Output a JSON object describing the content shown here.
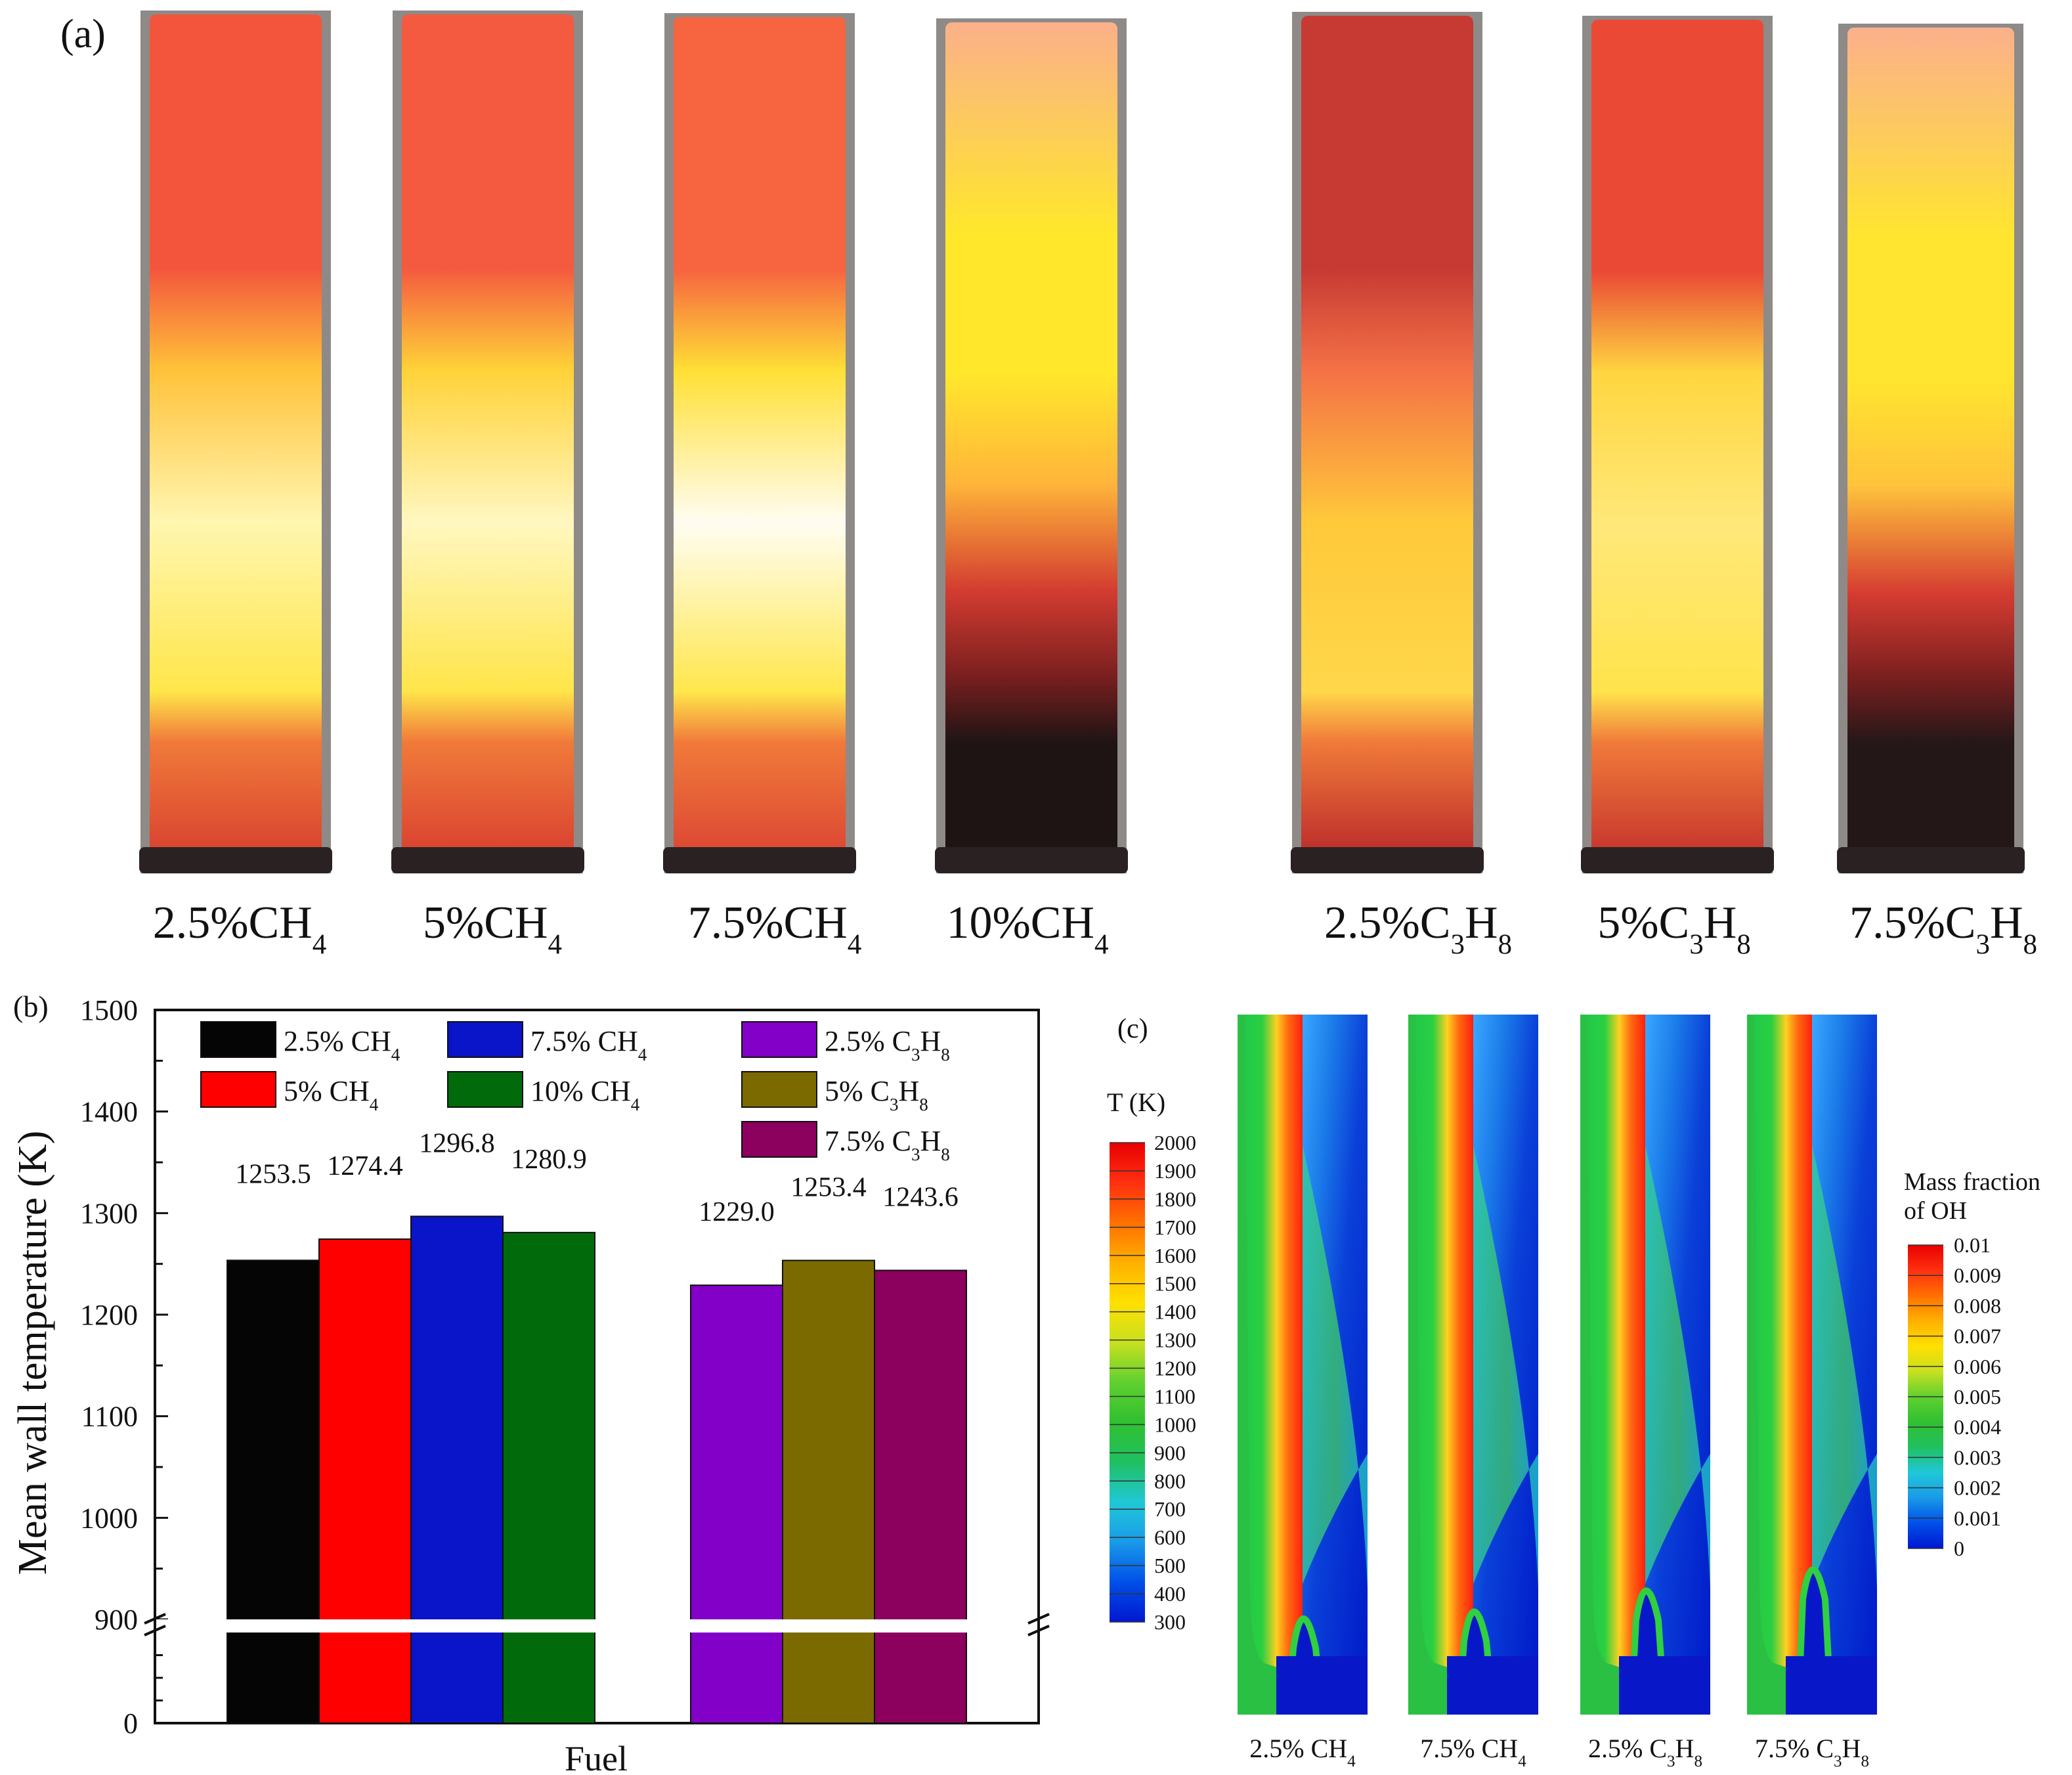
{
  "panel_a": {
    "label": "(a)",
    "tubes": [
      {
        "name": "2.5%CH4",
        "main": "2.5%CH",
        "sub": "4",
        "bottom": "#d73f2f",
        "lower": "#ffe64a",
        "middle": "#fff6b0",
        "upper": "#ffc23a",
        "top": "#f3553c",
        "dark": false
      },
      {
        "name": "5%CH4",
        "main": "5%CH",
        "sub": "4",
        "bottom": "#d83f30",
        "lower": "#ffe54a",
        "middle": "#fff7c0",
        "upper": "#ffd238",
        "top": "#f45a3f",
        "dark": false
      },
      {
        "name": "7.5%CH4",
        "main": "7.5%CH",
        "sub": "4",
        "bottom": "#db4433",
        "lower": "#ffe74c",
        "middle": "#fffdf2",
        "upper": "#ffe036",
        "top": "#f6653f",
        "dark": false
      },
      {
        "name": "10%CH4",
        "main": "10%CH",
        "sub": "4",
        "bottom": "#1e1414",
        "lower": "#d23b30",
        "middle": "#ffb53a",
        "upper": "#ffe72c",
        "top": "#fbb08a",
        "dark": true
      },
      {
        "name": "2.5%C3H8",
        "main": "2.5%C",
        "sub": "3",
        "main2": "H",
        "sub2": "8",
        "bottom": "#b9282a",
        "lower": "#ffd74a",
        "middle": "#ffc93a",
        "upper": "#f47146",
        "top": "#c73a34",
        "dark": false
      },
      {
        "name": "5%C3H8",
        "main": "5%C",
        "sub": "3",
        "main2": "H",
        "sub2": "8",
        "bottom": "#c4322d",
        "lower": "#ffe34c",
        "middle": "#ffe87a",
        "upper": "#ffd640",
        "top": "#ea4a35",
        "dark": false
      },
      {
        "name": "7.5%C3H8",
        "main": "7.5%C",
        "sub": "3",
        "main2": "H",
        "sub2": "8",
        "bottom": "#241718",
        "lower": "#d53c31",
        "middle": "#ffc33c",
        "upper": "#ffe52f",
        "top": "#fbb08c",
        "dark": true
      }
    ]
  },
  "chart_data": {
    "type": "bar",
    "panel_label": "(b)",
    "title": "",
    "xlabel": "Fuel",
    "ylabel": "Mean wall temperature (K)",
    "ylim": [
      900,
      1500
    ],
    "axis_break": true,
    "yticks_upper": [
      "900",
      "1000",
      "1100",
      "1200",
      "1300",
      "1400",
      "1500"
    ],
    "ytick_lower": "0",
    "series": [
      {
        "name": "2.5% CH4",
        "main": "2.5% CH",
        "sub": "4",
        "value": 1253.5,
        "label": "1253.5",
        "color": "#050505",
        "group": 0
      },
      {
        "name": "5% CH4",
        "main": "5%    CH",
        "sub": "4",
        "value": 1274.4,
        "label": "1274.4",
        "color": "#ff0000",
        "group": 0
      },
      {
        "name": "7.5% CH4",
        "main": "7.5% CH",
        "sub": "4",
        "value": 1296.8,
        "label": "1296.8",
        "color": "#0a14c8",
        "group": 0
      },
      {
        "name": "10% CH4",
        "main": "10%  CH",
        "sub": "4",
        "value": 1280.9,
        "label": "1280.9",
        "color": "#016b0b",
        "group": 0
      },
      {
        "name": "2.5% C3H8",
        "main": "2.5% C",
        "sub": "3",
        "main2": "H",
        "sub2": "8",
        "value": 1229.0,
        "label": "1229.0",
        "color": "#8200c8",
        "group": 1
      },
      {
        "name": "5% C3H8",
        "main": "5%    C",
        "sub": "3",
        "main2": "H",
        "sub2": "8",
        "value": 1253.4,
        "label": "1253.4",
        "color": "#7a6a00",
        "group": 1
      },
      {
        "name": "7.5% C3H8",
        "main": "7.5% C",
        "sub": "3",
        "main2": "H",
        "sub2": "8",
        "value": 1243.6,
        "label": "1243.6",
        "color": "#8c005e",
        "group": 1
      }
    ],
    "legend_placement": "top"
  },
  "panel_c": {
    "label": "(c)",
    "temp_title": "T (K)",
    "temp_ticks": [
      "2000",
      "1900",
      "1800",
      "1700",
      "1600",
      "1500",
      "1400",
      "1300",
      "1200",
      "1100",
      "1000",
      "900",
      "800",
      "700",
      "600",
      "500",
      "400",
      "300"
    ],
    "oh_title_1": "Mass fraction",
    "oh_title_2": "of OH",
    "oh_ticks": [
      "0.01",
      "0.009",
      "0.008",
      "0.007",
      "0.006",
      "0.005",
      "0.004",
      "0.003",
      "0.002",
      "0.001",
      "0"
    ],
    "colormap": [
      "#0018d0",
      "#0050e8",
      "#1a9ae8",
      "#20c8d8",
      "#20c060",
      "#30c030",
      "#60d030",
      "#c8e020",
      "#ffe000",
      "#ffb000",
      "#ff7000",
      "#ff3010",
      "#e80000"
    ],
    "contours": [
      {
        "name": "2.5% CH4",
        "main": "2.5% CH",
        "sub": "4",
        "flame": "#ff8a1e",
        "tip": 0.53
      },
      {
        "name": "7.5% CH4",
        "main": "7.5% CH",
        "sub": "4",
        "flame": "#ff9a20",
        "tip": 0.52
      },
      {
        "name": "2.5% C3H8",
        "main": "2.5% C",
        "sub": "3",
        "main2": "H",
        "sub2": "8",
        "flame": "#ff9426",
        "tip": 0.49
      },
      {
        "name": "7.5% C3H8",
        "main": "7.5% C",
        "sub": "3",
        "main2": "H",
        "sub2": "8",
        "flame": "#ff9426",
        "tip": 0.46
      }
    ]
  }
}
